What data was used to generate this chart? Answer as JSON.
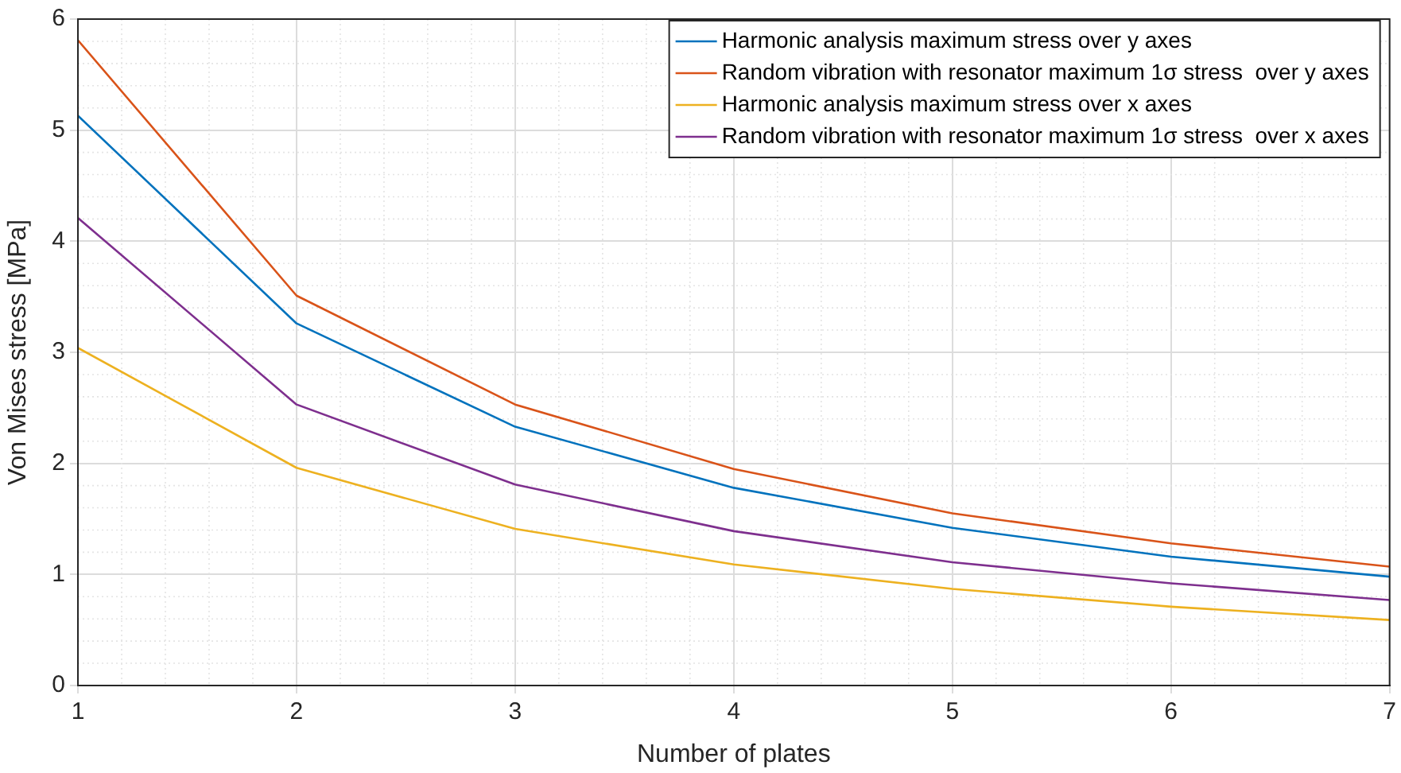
{
  "chart_data": {
    "type": "line",
    "xlabel": "Number of plates",
    "ylabel": "Von Mises stress [MPa]",
    "x": [
      1,
      2,
      3,
      4,
      5,
      6,
      7
    ],
    "xlim": [
      1,
      7
    ],
    "xticks": [
      1,
      2,
      3,
      4,
      5,
      6,
      7
    ],
    "ylim": [
      0,
      6
    ],
    "yticks": [
      0,
      1,
      2,
      3,
      4,
      5,
      6
    ],
    "grid": true,
    "legend": "top right",
    "marker": "none",
    "line_style": "solid",
    "series": [
      {
        "name": "Harmonic analysis maximum stress over y axes",
        "color": "#0072bd",
        "values": [
          5.13,
          3.26,
          2.33,
          1.78,
          1.42,
          1.16,
          0.98
        ]
      },
      {
        "name": "Random vibration with resonator maximum 1σ stress  over y axes",
        "color": "#d95319",
        "values": [
          5.81,
          3.51,
          2.53,
          1.95,
          1.55,
          1.28,
          1.07
        ]
      },
      {
        "name": "Harmonic analysis maximum stress over x axes",
        "color": "#edb120",
        "values": [
          3.04,
          1.96,
          1.41,
          1.09,
          0.87,
          0.71,
          0.59
        ]
      },
      {
        "name": "Random vibration with resonator maximum 1σ stress  over x axes",
        "color": "#7e2f8e",
        "values": [
          4.21,
          2.53,
          1.81,
          1.39,
          1.11,
          0.92,
          0.77
        ]
      }
    ]
  }
}
